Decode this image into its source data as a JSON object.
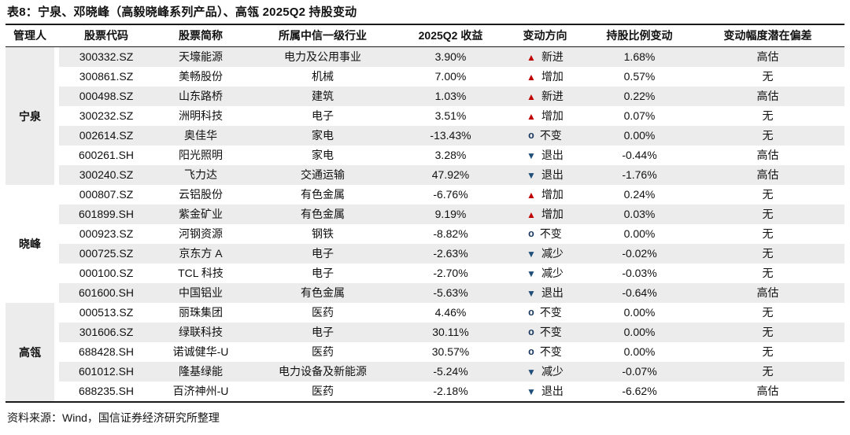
{
  "title": "表8：宁泉、邓晓峰（高毅晓峰系列产品）、高瓴 2025Q2 持股变动",
  "source": "资料来源：Wind，国信证券经济研究所整理",
  "colors": {
    "up_triangle": "#C00000",
    "down_triangle": "#1F4E79",
    "flat_marker": "#17375E",
    "row_stripe": "#ECECEC",
    "text": "#111111"
  },
  "table": {
    "columns": [
      {
        "key": "manager",
        "label": "管理人"
      },
      {
        "key": "stock-code",
        "label": "股票代码"
      },
      {
        "key": "stock-name",
        "label": "股票简称"
      },
      {
        "key": "industry",
        "label": "所属中信一级行业"
      },
      {
        "key": "q2-return",
        "label": "2025Q2 收益"
      },
      {
        "key": "direction",
        "label": "变动方向"
      },
      {
        "key": "holding-change",
        "label": "持股比例变动"
      },
      {
        "key": "bias",
        "label": "变动幅度潜在偏差"
      }
    ],
    "groups": [
      {
        "manager": "宁泉",
        "shaded": true,
        "rows": [
          {
            "code": "300332.SZ",
            "name": "天壕能源",
            "industry": "电力及公用事业",
            "ret": "3.90%",
            "symbol": "▲",
            "trend": "up",
            "direction": "新进",
            "change": "1.68%",
            "bias": "高估"
          },
          {
            "code": "300861.SZ",
            "name": "美畅股份",
            "industry": "机械",
            "ret": "7.00%",
            "symbol": "▲",
            "trend": "up",
            "direction": "增加",
            "change": "0.57%",
            "bias": "无"
          },
          {
            "code": "000498.SZ",
            "name": "山东路桥",
            "industry": "建筑",
            "ret": "1.03%",
            "symbol": "▲",
            "trend": "up",
            "direction": "新进",
            "change": "0.22%",
            "bias": "高估"
          },
          {
            "code": "300232.SZ",
            "name": "洲明科技",
            "industry": "电子",
            "ret": "3.51%",
            "symbol": "▲",
            "trend": "up",
            "direction": "增加",
            "change": "0.07%",
            "bias": "无"
          },
          {
            "code": "002614.SZ",
            "name": "奥佳华",
            "industry": "家电",
            "ret": "-13.43%",
            "symbol": "o",
            "trend": "flat",
            "direction": "不变",
            "change": "0.00%",
            "bias": "无"
          },
          {
            "code": "600261.SH",
            "name": "阳光照明",
            "industry": "家电",
            "ret": "3.28%",
            "symbol": "▼",
            "trend": "down",
            "direction": "退出",
            "change": "-0.44%",
            "bias": "高估"
          },
          {
            "code": "300240.SZ",
            "name": "飞力达",
            "industry": "交通运输",
            "ret": "47.92%",
            "symbol": "▼",
            "trend": "down",
            "direction": "退出",
            "change": "-1.76%",
            "bias": "高估"
          }
        ]
      },
      {
        "manager": "晓峰",
        "shaded": false,
        "rows": [
          {
            "code": "000807.SZ",
            "name": "云铝股份",
            "industry": "有色金属",
            "ret": "-6.76%",
            "symbol": "▲",
            "trend": "up",
            "direction": "增加",
            "change": "0.24%",
            "bias": "无"
          },
          {
            "code": "601899.SH",
            "name": "紫金矿业",
            "industry": "有色金属",
            "ret": "9.19%",
            "symbol": "▲",
            "trend": "up",
            "direction": "增加",
            "change": "0.03%",
            "bias": "无"
          },
          {
            "code": "000923.SZ",
            "name": "河钢资源",
            "industry": "钢铁",
            "ret": "-8.82%",
            "symbol": "o",
            "trend": "flat",
            "direction": "不变",
            "change": "0.00%",
            "bias": "无"
          },
          {
            "code": "000725.SZ",
            "name": "京东方 A",
            "industry": "电子",
            "ret": "-2.63%",
            "symbol": "▼",
            "trend": "down",
            "direction": "减少",
            "change": "-0.02%",
            "bias": "无"
          },
          {
            "code": "000100.SZ",
            "name": "TCL 科技",
            "industry": "电子",
            "ret": "-2.70%",
            "symbol": "▼",
            "trend": "down",
            "direction": "减少",
            "change": "-0.03%",
            "bias": "无"
          },
          {
            "code": "601600.SH",
            "name": "中国铝业",
            "industry": "有色金属",
            "ret": "-5.63%",
            "symbol": "▼",
            "trend": "down",
            "direction": "退出",
            "change": "-0.64%",
            "bias": "高估"
          }
        ]
      },
      {
        "manager": "高瓴",
        "shaded": true,
        "rows": [
          {
            "code": "000513.SZ",
            "name": "丽珠集团",
            "industry": "医药",
            "ret": "4.46%",
            "symbol": "o",
            "trend": "flat",
            "direction": "不变",
            "change": "0.00%",
            "bias": "无"
          },
          {
            "code": "301606.SZ",
            "name": "绿联科技",
            "industry": "电子",
            "ret": "30.11%",
            "symbol": "o",
            "trend": "flat",
            "direction": "不变",
            "change": "0.00%",
            "bias": "无"
          },
          {
            "code": "688428.SH",
            "name": "诺诚健华-U",
            "industry": "医药",
            "ret": "30.57%",
            "symbol": "o",
            "trend": "flat",
            "direction": "不变",
            "change": "0.00%",
            "bias": "无"
          },
          {
            "code": "601012.SH",
            "name": "隆基绿能",
            "industry": "电力设备及新能源",
            "ret": "-5.24%",
            "symbol": "▼",
            "trend": "down",
            "direction": "减少",
            "change": "-0.07%",
            "bias": "无"
          },
          {
            "code": "688235.SH",
            "name": "百济神州-U",
            "industry": "医药",
            "ret": "-2.18%",
            "symbol": "▼",
            "trend": "down",
            "direction": "退出",
            "change": "-6.62%",
            "bias": "高估"
          }
        ]
      }
    ]
  }
}
